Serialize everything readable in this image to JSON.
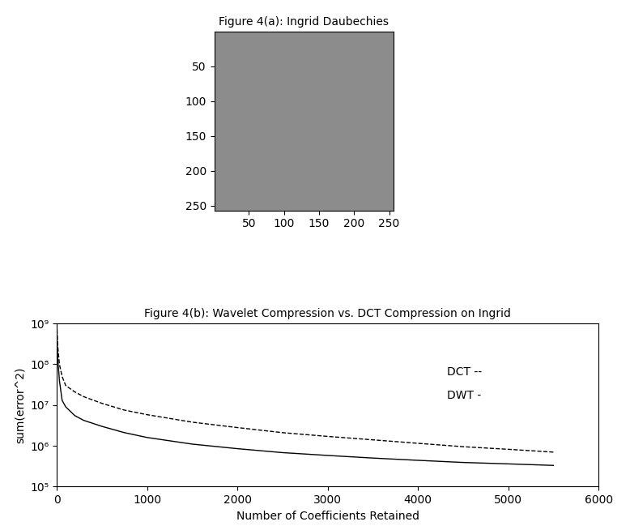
{
  "chart_data": [
    {
      "type": "image",
      "title": "Figure 4(a): Ingrid Daubechies",
      "xlim": [
        0.5,
        256.5
      ],
      "ylim": [
        256.5,
        0.5
      ],
      "xticks": [
        50,
        100,
        150,
        200,
        250
      ],
      "yticks": [
        50,
        100,
        150,
        200,
        250
      ]
    },
    {
      "type": "line",
      "title": "Figure 4(b): Wavelet Compression vs. DCT Compression on Ingrid",
      "x_label": "Number of Coefficients Retained",
      "y_label": "sum(error^2)",
      "annotations": [
        "DCT --",
        "DWT -"
      ],
      "log": "y",
      "xlim": [
        0,
        6000
      ],
      "ylim": [
        100000,
        1000000000
      ],
      "xticks": [
        0,
        1000,
        2000,
        3000,
        4000,
        5000,
        6000
      ],
      "yticks": [
        {
          "value": 100000,
          "label": "10⁵"
        },
        {
          "value": 1000000,
          "label": "10⁶"
        },
        {
          "value": 10000000,
          "label": "10⁷"
        },
        {
          "value": 100000000,
          "label": "10⁸"
        },
        {
          "value": 1000000000,
          "label": "10⁹"
        }
      ],
      "x": [
        1,
        10,
        30,
        60,
        100,
        200,
        300,
        500,
        750,
        1000,
        1500,
        2000,
        2500,
        3000,
        3500,
        4000,
        4500,
        5000,
        5500
      ],
      "series": [
        {
          "name": "DCT",
          "color": "#000000",
          "line_style": "dashed",
          "values": [
            1000000000,
            300000000,
            100000000,
            50000000,
            30000000,
            21000000,
            16000000,
            11000000,
            7500000,
            5800000,
            3800000,
            2800000,
            2100000,
            1700000,
            1400000,
            1150000,
            950000,
            820000,
            700000
          ]
        },
        {
          "name": "DWT",
          "color": "#000000",
          "line_style": "solid",
          "values": [
            800000000,
            150000000,
            40000000,
            13000000,
            9000000,
            5500000,
            4200000,
            3000000,
            2100000,
            1600000,
            1100000,
            850000,
            680000,
            580000,
            500000,
            440000,
            390000,
            360000,
            330000
          ]
        }
      ]
    }
  ]
}
